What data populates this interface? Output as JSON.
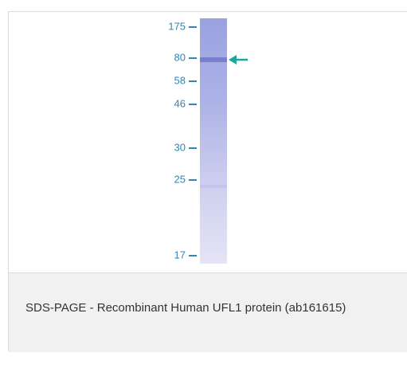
{
  "figure": {
    "markers": [
      "175",
      "80",
      "58",
      "46",
      "30",
      "25",
      "17"
    ]
  },
  "caption": "SDS-PAGE - Recombinant Human UFL1 protein (ab161615)"
}
